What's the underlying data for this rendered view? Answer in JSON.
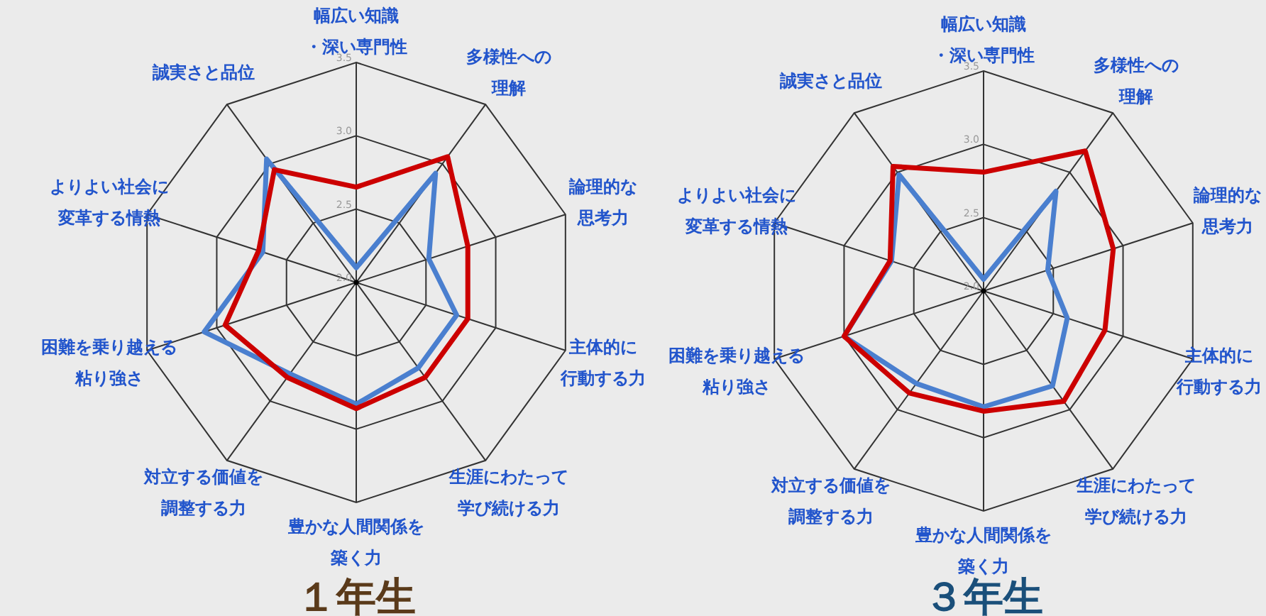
{
  "chart_data": [
    {
      "type": "radar",
      "title": "１年生",
      "categories": [
        "幅広い知識・深い専門性",
        "多様性への理解",
        "論理的な思考力",
        "主体的に行動する力",
        "生涯にわたって学び続ける力",
        "豊かな人間関係を築く力",
        "対立する価値を調整する力",
        "困難を乗り越える粘り強さ",
        "よりよい社会に変革する情熱",
        "誠実さと品位"
      ],
      "ylim": [
        2.0,
        3.5
      ],
      "yticks": [
        {
          "value": 2,
          "label": "2.0"
        },
        {
          "value": 2.5,
          "label": "2.5"
        },
        {
          "value": 3,
          "label": "3.0"
        },
        {
          "value": 3.5,
          "label": "3.5"
        }
      ],
      "grid": true,
      "series": [
        {
          "color": "#4a7fcf",
          "values": [
            2.1,
            2.92,
            2.52,
            2.72,
            2.72,
            2.83,
            2.77,
            3.09,
            2.67,
            3.04
          ]
        },
        {
          "color": "#cc0000",
          "values": [
            2.65,
            3.06,
            2.8,
            2.8,
            2.8,
            2.86,
            2.8,
            2.94,
            2.7,
            2.95
          ]
        }
      ]
    },
    {
      "type": "radar",
      "title": "３年生",
      "categories": [
        "幅広い知識・深い専門性",
        "多様性への理解",
        "論理的な思考力",
        "主体的に行動する力",
        "生涯にわたって学び続ける力",
        "豊かな人間関係を築く力",
        "対立する価値を調整する力",
        "困難を乗り越える粘り強さ",
        "よりよい社会に変革する情熱",
        "誠実さと品位"
      ],
      "ylim": [
        2.0,
        3.5
      ],
      "yticks": [
        {
          "value": 2,
          "label": "2.0"
        },
        {
          "value": 2.5,
          "label": "2.5"
        },
        {
          "value": 3,
          "label": "3.0"
        },
        {
          "value": 3.5,
          "label": "3.5"
        }
      ],
      "grid": true,
      "series": [
        {
          "color": "#4a7fcf",
          "values": [
            2.08,
            2.84,
            2.46,
            2.6,
            2.8,
            2.79,
            2.78,
            3.0,
            2.66,
            2.98
          ]
        },
        {
          "color": "#cc0000",
          "values": [
            2.81,
            3.18,
            2.93,
            2.87,
            2.93,
            2.82,
            2.86,
            3.0,
            2.67,
            3.05
          ]
        }
      ]
    }
  ]
}
